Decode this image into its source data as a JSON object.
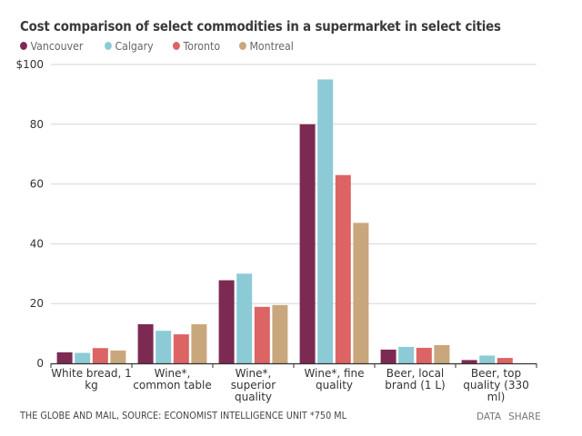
{
  "chart_data": {
    "type": "bar",
    "title": "Cost comparison of select commodities in a supermarket in select cities",
    "xlabel": "",
    "ylabel": "",
    "ylim": [
      0,
      100
    ],
    "yticks": [
      0,
      20,
      40,
      60,
      80,
      100
    ],
    "ytick_labels": [
      "0",
      "20",
      "40",
      "60",
      "80",
      "$100"
    ],
    "grid": true,
    "legend_position": "top-left",
    "categories": [
      [
        "White bread, 1",
        "kg"
      ],
      [
        "Wine*,",
        "common table"
      ],
      [
        "Wine*,",
        "superior",
        "quality"
      ],
      [
        "Wine*, fine",
        "quality"
      ],
      [
        "Beer, local",
        "brand (1 L)"
      ],
      [
        "Beer, top",
        "quality (330",
        "ml)"
      ]
    ],
    "series": [
      {
        "name": "Vancouver",
        "color": "#7d2a52",
        "values": [
          3.7,
          13.1,
          27.8,
          80,
          4.6,
          1.1
        ]
      },
      {
        "name": "Calgary",
        "color": "#8ccbd6",
        "values": [
          3.5,
          10.9,
          30,
          95,
          5.5,
          2.6
        ]
      },
      {
        "name": "Toronto",
        "color": "#dc6464",
        "values": [
          5.1,
          9.7,
          18.9,
          63,
          5.2,
          1.8
        ]
      },
      {
        "name": "Montreal",
        "color": "#c9a77c",
        "values": [
          4.3,
          13.1,
          19.5,
          47,
          6.1,
          0
        ]
      }
    ]
  },
  "footer": {
    "source": "THE GLOBE AND MAIL, SOURCE: ECONOMIST INTELLIGENCE UNIT *750 ML",
    "data_label": "DATA",
    "share_label": "SHARE"
  }
}
